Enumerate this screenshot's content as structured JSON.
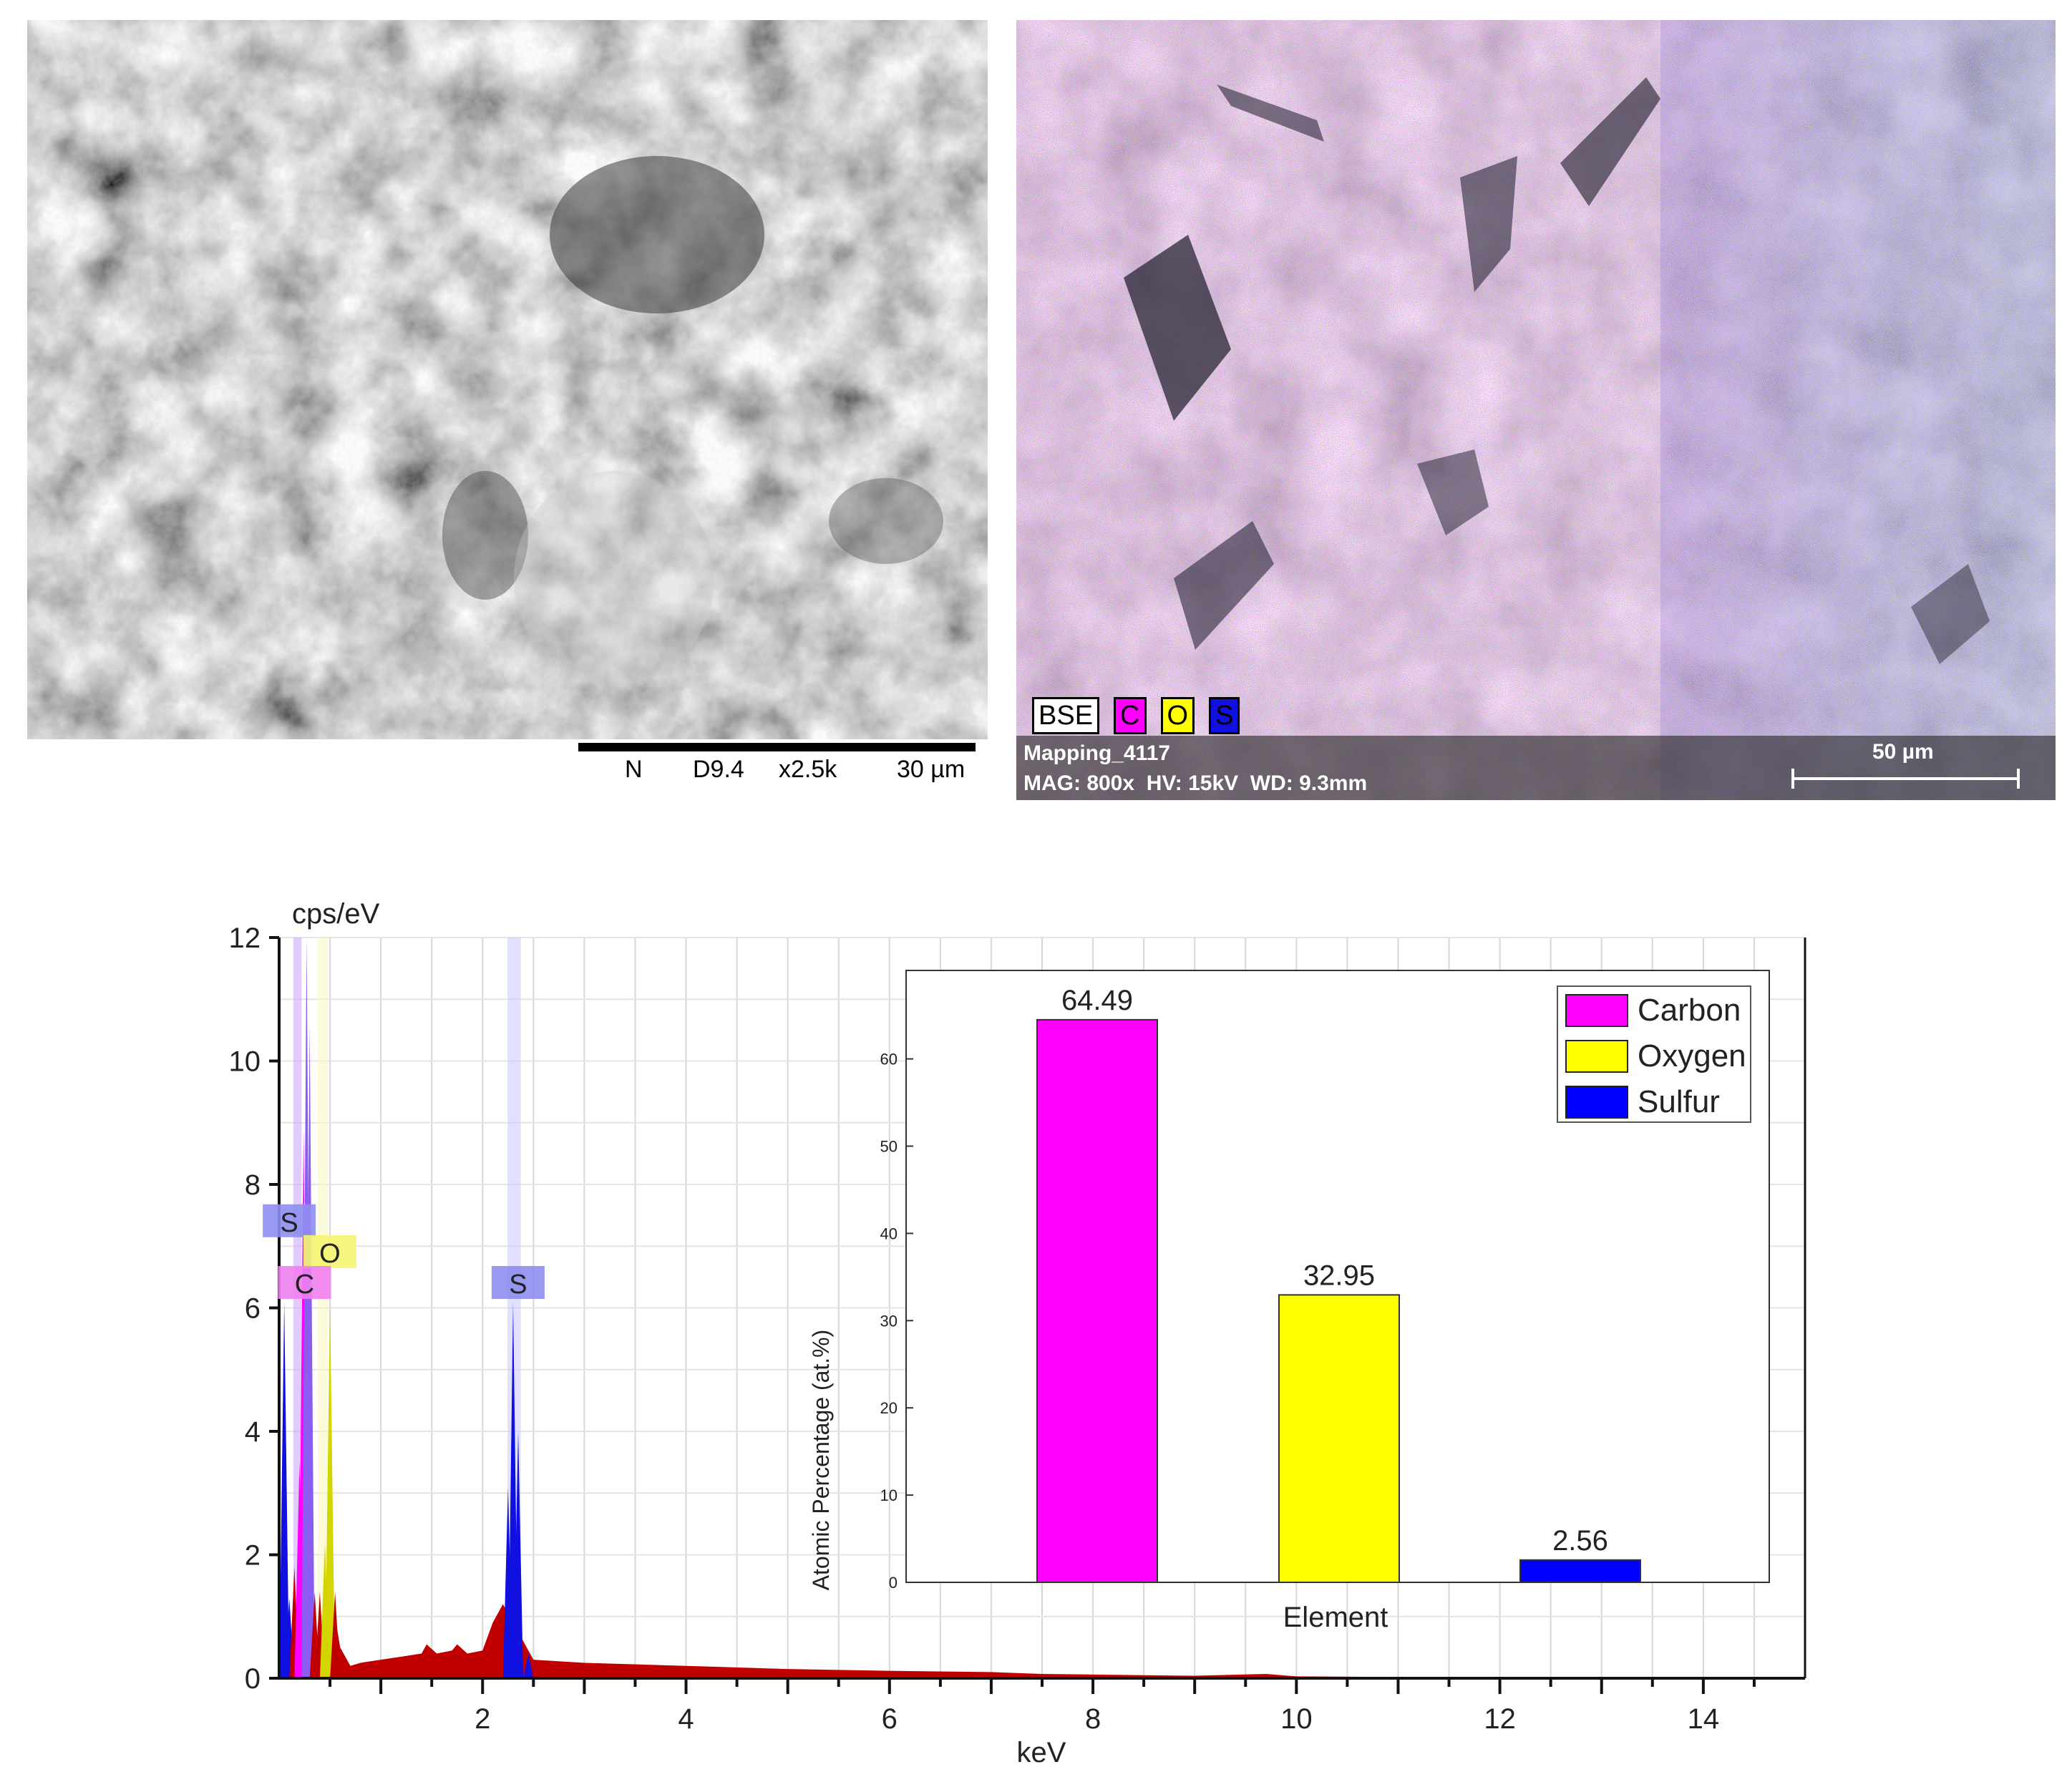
{
  "sem": {
    "scalebar_labels": [
      "N",
      "D9.4",
      "x2.5k",
      "30 µm"
    ]
  },
  "map": {
    "legend": [
      {
        "label": "BSE",
        "color": "#ffffff"
      },
      {
        "label": "C",
        "color": "#ff00ff"
      },
      {
        "label": "O",
        "color": "#ffff00"
      },
      {
        "label": "S",
        "color": "#1010e0"
      }
    ],
    "title": "Mapping_4117",
    "info": "MAG: 800x  HV: 15kV  WD: 9.3mm",
    "scale_label": "50 µm"
  },
  "chart_data": [
    {
      "type": "area",
      "ylabel": "cps/eV",
      "xlabel": "keV",
      "xlim": [
        0,
        15
      ],
      "ylim": [
        0,
        12
      ],
      "xticks": [
        2,
        4,
        6,
        8,
        10,
        12,
        14
      ],
      "yticks": [
        0,
        2,
        4,
        6,
        8,
        10,
        12
      ],
      "grid": true,
      "fill_color": "#c00000",
      "peak_labels": [
        {
          "label": "S",
          "x": 0.05,
          "y": 7.4,
          "color": "#8e8ef0"
        },
        {
          "label": "O",
          "x": 0.45,
          "y": 6.9,
          "color": "#f5f570"
        },
        {
          "label": "C",
          "x": 0.2,
          "y": 6.4,
          "color": "#f080f0"
        },
        {
          "label": "S",
          "x": 2.3,
          "y": 6.4,
          "color": "#8e8ef0"
        }
      ],
      "peak_bands": [
        {
          "x": 0.18,
          "width": 0.08,
          "color": "#c9a0ff"
        },
        {
          "x": 0.43,
          "width": 0.1,
          "color": "#f8f8c0"
        },
        {
          "x": 2.31,
          "width": 0.13,
          "color": "#c8c8ff"
        }
      ],
      "peaks": [
        {
          "x": 0.05,
          "y": 6.1,
          "color": "#1010e0"
        },
        {
          "x": 0.1,
          "y": 1.3,
          "color": "#1010e0"
        },
        {
          "x": 0.15,
          "y": 1.8,
          "color": "#c00000"
        },
        {
          "x": 0.2,
          "y": 3.5,
          "color": "#ff00ff"
        },
        {
          "x": 0.24,
          "y": 8.9,
          "color": "#ff00ff"
        },
        {
          "x": 0.27,
          "y": 12.0,
          "color": "#8a5cf0"
        },
        {
          "x": 0.3,
          "y": 10.6,
          "color": "#8a5cf0"
        },
        {
          "x": 0.35,
          "y": 1.4,
          "color": "#c00000"
        },
        {
          "x": 0.4,
          "y": 1.4,
          "color": "#c00000"
        },
        {
          "x": 0.45,
          "y": 2.2,
          "color": "#d4d400"
        },
        {
          "x": 0.5,
          "y": 6.1,
          "color": "#d4d400"
        },
        {
          "x": 0.55,
          "y": 1.4,
          "color": "#c00000"
        },
        {
          "x": 2.25,
          "y": 3.1,
          "color": "#1010e0"
        },
        {
          "x": 2.3,
          "y": 6.1,
          "color": "#1010e0"
        },
        {
          "x": 2.35,
          "y": 4.0,
          "color": "#1010e0"
        },
        {
          "x": 2.45,
          "y": 0.4,
          "color": "#1010e0"
        }
      ],
      "continuum": [
        [
          0.55,
          1.0
        ],
        [
          0.6,
          0.5
        ],
        [
          0.7,
          0.2
        ],
        [
          0.8,
          0.25
        ],
        [
          1.0,
          0.3
        ],
        [
          1.2,
          0.35
        ],
        [
          1.4,
          0.4
        ],
        [
          1.45,
          0.55
        ],
        [
          1.55,
          0.4
        ],
        [
          1.7,
          0.45
        ],
        [
          1.75,
          0.55
        ],
        [
          1.85,
          0.4
        ],
        [
          2.0,
          0.45
        ],
        [
          2.1,
          0.9
        ],
        [
          2.2,
          1.2
        ],
        [
          2.5,
          0.3
        ],
        [
          3.0,
          0.25
        ],
        [
          4.0,
          0.2
        ],
        [
          5.0,
          0.15
        ],
        [
          6.0,
          0.12
        ],
        [
          7.0,
          0.1
        ],
        [
          7.5,
          0.07
        ],
        [
          8.0,
          0.06
        ],
        [
          9.0,
          0.04
        ],
        [
          9.7,
          0.07
        ],
        [
          10.0,
          0.03
        ],
        [
          11.0,
          0.02
        ],
        [
          12.2,
          0.01
        ],
        [
          15.0,
          0.0
        ]
      ]
    },
    {
      "type": "bar",
      "xlabel": "Element",
      "ylabel": "Atomic Percentage (at.%)",
      "categories": [
        "Carbon",
        "Oxygen",
        "Sulfur"
      ],
      "values": [
        64.49,
        32.95,
        2.56
      ],
      "value_labels": [
        "64.49",
        "32.95",
        "2.56"
      ],
      "colors": [
        "#ff00ff",
        "#ffff00",
        "#0000ff"
      ],
      "ylim": [
        0,
        70
      ],
      "yticks": [
        0,
        10,
        20,
        30,
        40,
        50,
        60
      ],
      "legend": {
        "position": "top-right",
        "entries": [
          "Carbon",
          "Oxygen",
          "Sulfur"
        ]
      }
    }
  ]
}
